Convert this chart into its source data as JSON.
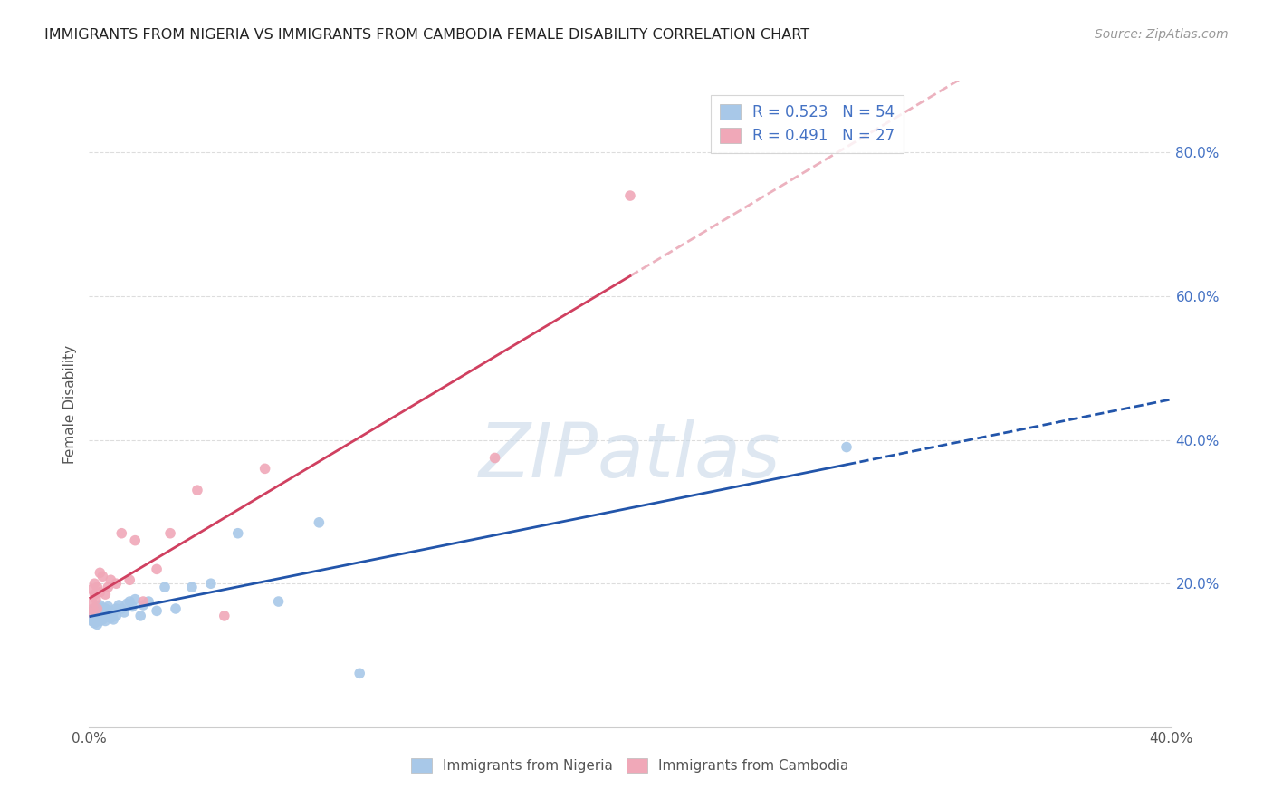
{
  "title": "IMMIGRANTS FROM NIGERIA VS IMMIGRANTS FROM CAMBODIA FEMALE DISABILITY CORRELATION CHART",
  "source": "Source: ZipAtlas.com",
  "ylabel": "Female Disability",
  "xlim": [
    0.0,
    0.4
  ],
  "ylim": [
    0.0,
    0.9
  ],
  "right_yticks": [
    0.2,
    0.4,
    0.6,
    0.8
  ],
  "right_yticklabels": [
    "20.0%",
    "40.0%",
    "60.0%",
    "80.0%"
  ],
  "nigeria_color": "#A8C8E8",
  "cambodia_color": "#F0A8B8",
  "nigeria_line_color": "#2255AA",
  "cambodia_line_color": "#D04060",
  "R_nigeria": 0.523,
  "N_nigeria": 54,
  "R_cambodia": 0.491,
  "N_cambodia": 27,
  "nigeria_x": [
    0.0005,
    0.001,
    0.001,
    0.0015,
    0.0015,
    0.002,
    0.002,
    0.002,
    0.0025,
    0.0025,
    0.003,
    0.003,
    0.003,
    0.003,
    0.0035,
    0.0035,
    0.004,
    0.004,
    0.004,
    0.004,
    0.005,
    0.005,
    0.005,
    0.006,
    0.006,
    0.006,
    0.007,
    0.007,
    0.008,
    0.008,
    0.009,
    0.009,
    0.01,
    0.01,
    0.011,
    0.012,
    0.013,
    0.014,
    0.015,
    0.016,
    0.017,
    0.019,
    0.02,
    0.022,
    0.025,
    0.028,
    0.032,
    0.038,
    0.045,
    0.055,
    0.07,
    0.085,
    0.1,
    0.28
  ],
  "nigeria_y": [
    0.155,
    0.148,
    0.162,
    0.15,
    0.158,
    0.145,
    0.155,
    0.165,
    0.148,
    0.162,
    0.143,
    0.15,
    0.155,
    0.168,
    0.15,
    0.158,
    0.148,
    0.155,
    0.162,
    0.17,
    0.15,
    0.158,
    0.166,
    0.148,
    0.155,
    0.165,
    0.158,
    0.168,
    0.152,
    0.162,
    0.15,
    0.16,
    0.155,
    0.165,
    0.17,
    0.165,
    0.16,
    0.172,
    0.175,
    0.168,
    0.178,
    0.155,
    0.17,
    0.175,
    0.162,
    0.195,
    0.165,
    0.195,
    0.2,
    0.27,
    0.175,
    0.285,
    0.075,
    0.39
  ],
  "cambodia_x": [
    0.0005,
    0.001,
    0.001,
    0.0015,
    0.002,
    0.002,
    0.0025,
    0.003,
    0.003,
    0.004,
    0.004,
    0.005,
    0.006,
    0.007,
    0.008,
    0.01,
    0.012,
    0.015,
    0.017,
    0.02,
    0.025,
    0.03,
    0.04,
    0.05,
    0.065,
    0.15,
    0.2
  ],
  "cambodia_y": [
    0.16,
    0.175,
    0.192,
    0.165,
    0.185,
    0.2,
    0.178,
    0.165,
    0.195,
    0.188,
    0.215,
    0.21,
    0.185,
    0.195,
    0.205,
    0.2,
    0.27,
    0.205,
    0.26,
    0.175,
    0.22,
    0.27,
    0.33,
    0.155,
    0.36,
    0.375,
    0.74
  ],
  "watermark_text": "ZIPatlas",
  "background_color": "#ffffff",
  "grid_color": "#dddddd"
}
